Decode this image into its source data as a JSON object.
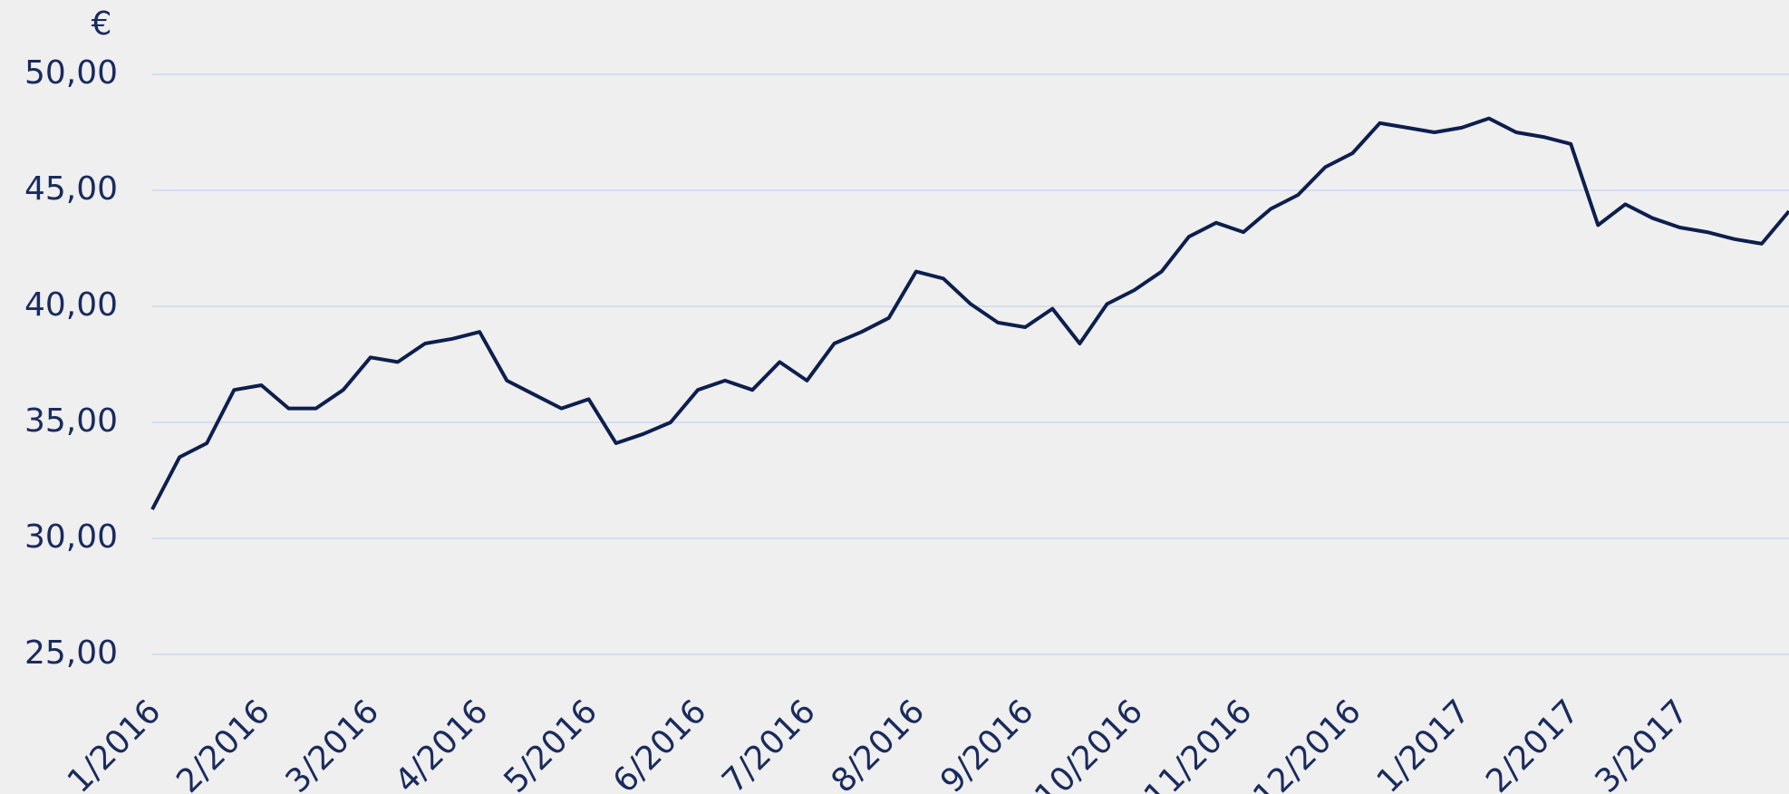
{
  "chart_data": {
    "type": "line",
    "unit_label": "€",
    "categories": [
      "1/2016",
      null,
      null,
      null,
      "2/2016",
      null,
      null,
      null,
      "3/2016",
      null,
      null,
      null,
      "4/2016",
      null,
      null,
      null,
      "5/2016",
      null,
      null,
      null,
      "6/2016",
      null,
      null,
      null,
      "7/2016",
      null,
      null,
      null,
      "8/2016",
      null,
      null,
      null,
      "9/2016",
      null,
      null,
      null,
      "10/2016",
      null,
      null,
      null,
      "11/2016",
      null,
      null,
      null,
      "12/2016",
      null,
      null,
      null,
      "1/2017",
      null,
      null,
      null,
      "2/2017",
      null,
      null,
      null,
      "3/2017",
      null,
      null,
      null,
      null
    ],
    "series": [
      {
        "color": "#0d1f4d",
        "values": [
          31.25,
          33.5,
          34.1,
          36.4,
          36.6,
          35.6,
          35.6,
          36.4,
          37.8,
          37.6,
          38.4,
          38.6,
          38.9,
          36.8,
          36.2,
          35.6,
          36.0,
          34.1,
          34.5,
          35.0,
          36.4,
          36.8,
          36.4,
          37.6,
          36.8,
          38.4,
          38.9,
          39.5,
          41.5,
          41.2,
          40.1,
          39.3,
          39.1,
          39.9,
          38.4,
          40.1,
          40.7,
          41.5,
          43.0,
          43.6,
          43.2,
          44.2,
          44.8,
          46.0,
          46.6,
          47.9,
          47.7,
          47.5,
          47.7,
          48.1,
          47.5,
          47.3,
          47.0,
          43.5,
          44.4,
          43.8,
          43.4,
          43.2,
          42.9,
          42.7,
          44.1
        ]
      }
    ],
    "ylim": [
      22.5,
      52.5
    ],
    "yticks": [
      {
        "value": 25,
        "label": "25,00"
      },
      {
        "value": 30,
        "label": "30,00"
      },
      {
        "value": 35,
        "label": "35,00"
      },
      {
        "value": 40,
        "label": "40,00"
      },
      {
        "value": 45,
        "label": "45,00"
      },
      {
        "value": 50,
        "label": "50,00"
      }
    ],
    "grid": true,
    "grid_color": "#c9d9f2"
  }
}
